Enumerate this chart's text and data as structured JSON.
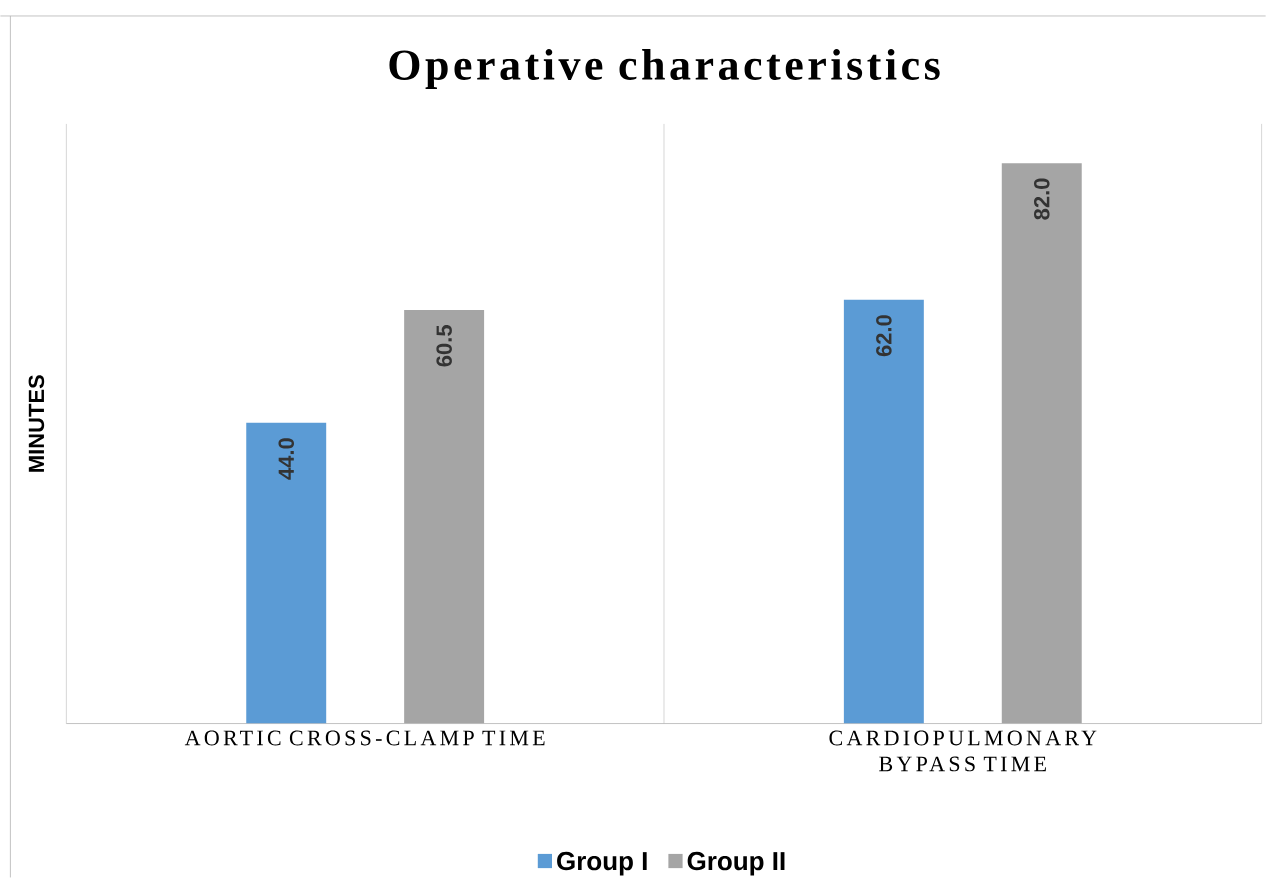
{
  "chart_data": {
    "type": "bar",
    "title": "Operative characteristics",
    "ylabel": "MINUTES",
    "categories": [
      "AORTIC CROSS-CLAMP TIME",
      "CARDIOPULMONARY BYPASS TIME"
    ],
    "series": [
      {
        "name": "Group I",
        "color": "#5b9bd5",
        "values": [
          44.0,
          62.0
        ],
        "value_labels": [
          "44.0",
          "62.0"
        ]
      },
      {
        "name": "Group II",
        "color": "#a5a5a5",
        "values": [
          60.5,
          82.0
        ],
        "value_labels": [
          "60.5",
          "82.0"
        ]
      }
    ],
    "grid": "x",
    "legend": "bottom"
  }
}
